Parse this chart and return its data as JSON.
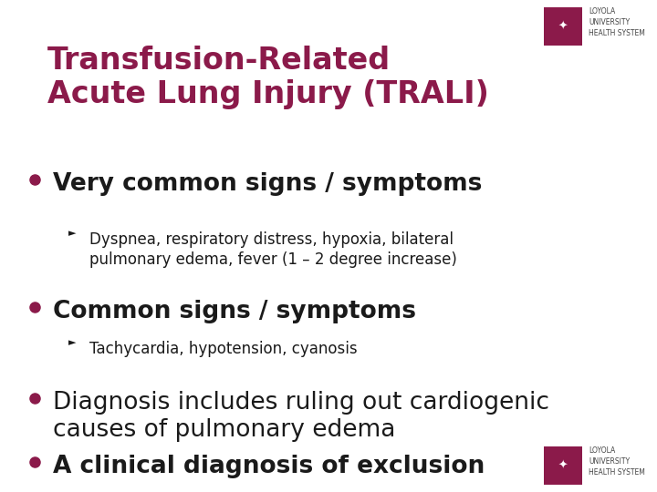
{
  "title_line1": "Transfusion-Related",
  "title_line2": "Acute Lung Injury (TRALI)",
  "title_color": "#8B1A4A",
  "background_color": "#FFFFFF",
  "bullet_color": "#8B1A4A",
  "text_color": "#1a1a1a",
  "logo_color": "#444444",
  "logo_box_color": "#8B1A4A",
  "title_fontsize": 24,
  "bullet0_fontsize": 19,
  "bullet1_fontsize": 12,
  "logo_text": "LOYOLA\nUNIVERSITY\nHEALTH SYSTEM",
  "logo_fontsize": 5.5,
  "bullet_items": [
    {
      "level": 0,
      "text": "Very common signs / symptoms",
      "bold": true
    },
    {
      "level": 1,
      "text": "Dyspnea, respiratory distress, hypoxia, bilateral\npulmonary edema, fever (1 – 2 degree increase)",
      "bold": false
    },
    {
      "level": 0,
      "text": "Common signs / symptoms",
      "bold": true
    },
    {
      "level": 1,
      "text": "Tachycardia, hypotension, cyanosis",
      "bold": false
    },
    {
      "level": 0,
      "text": "Diagnosis includes ruling out cardiogenic\ncauses of pulmonary edema",
      "bold": false
    },
    {
      "level": 0,
      "text": "A clinical diagnosis of exclusion",
      "bold": true
    }
  ]
}
